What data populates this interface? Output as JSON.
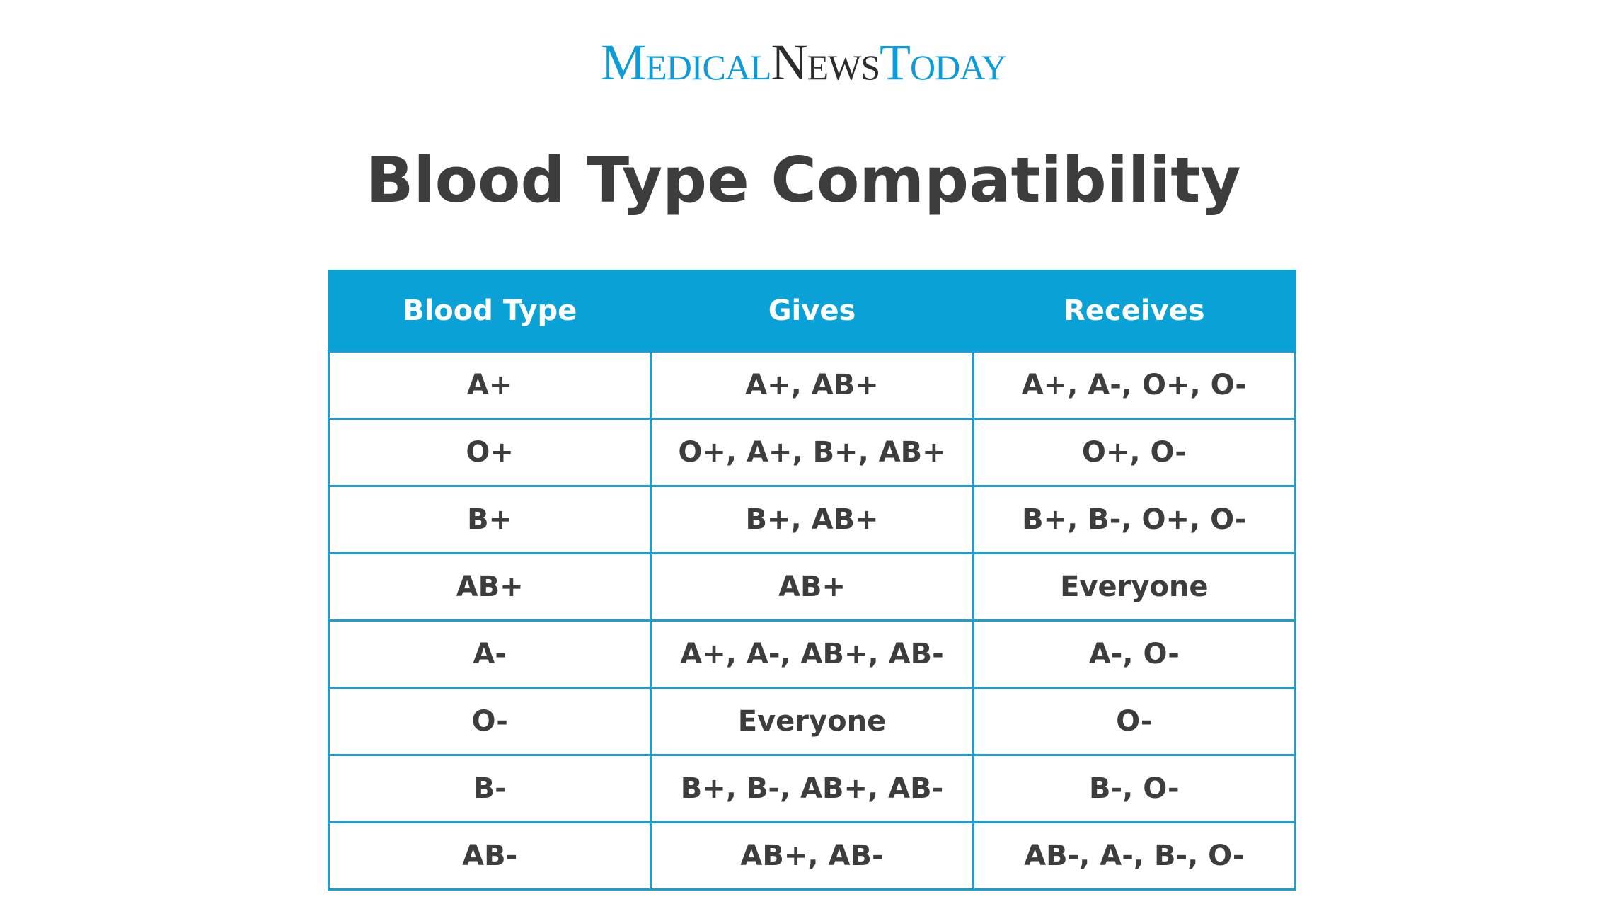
{
  "header": {
    "logo": {
      "part1": "Medical",
      "part2": "News",
      "part3": "Today"
    },
    "title": "Blood Type Compatibility"
  },
  "table": {
    "columns": [
      "Blood Type",
      "Gives",
      "Receives"
    ],
    "rows": [
      [
        "A+",
        "A+, AB+",
        "A+, A-, O+, O-"
      ],
      [
        "O+",
        "O+, A+, B+, AB+",
        "O+, O-"
      ],
      [
        "B+",
        "B+, AB+",
        "B+, B-, O+, O-"
      ],
      [
        "AB+",
        "AB+",
        "Everyone"
      ],
      [
        "A-",
        "A+, A-, AB+, AB-",
        "A-, O-"
      ],
      [
        "O-",
        "Everyone",
        "O-"
      ],
      [
        "B-",
        "B+, B-, AB+, AB-",
        "B-, O-"
      ],
      [
        "AB-",
        "AB+, AB-",
        "AB-, A-, B-, O-"
      ]
    ]
  }
}
